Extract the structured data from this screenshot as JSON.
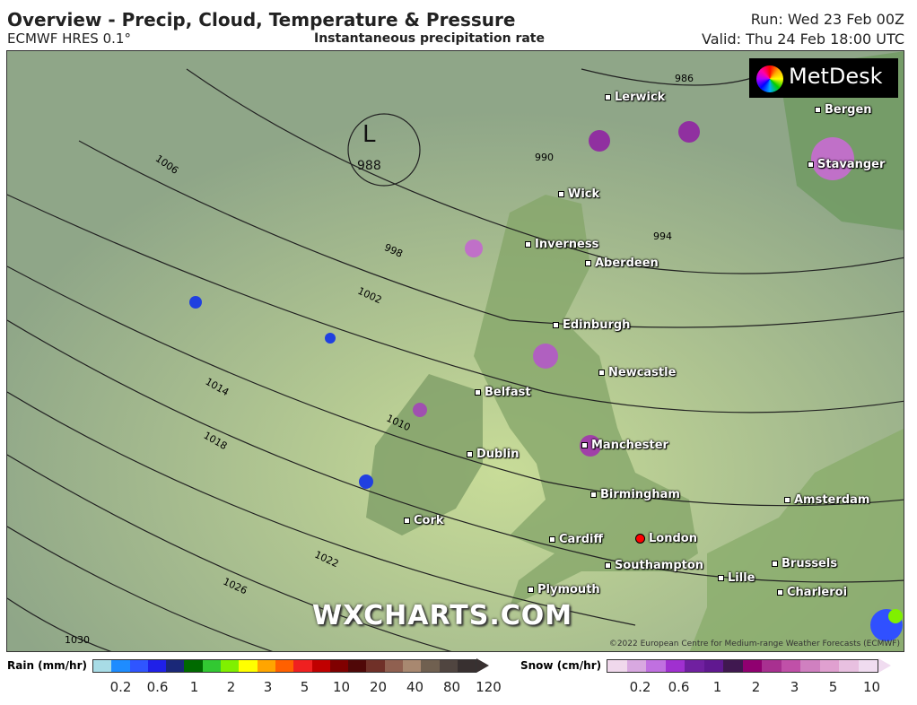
{
  "header": {
    "title": "Overview - Precip, Cloud, Temperature & Pressure",
    "model": "ECMWF HRES 0.1°",
    "subtitle": "Instantaneous precipitation rate",
    "run": "Run: Wed 23 Feb 00Z",
    "valid": "Valid: Thu 24 Feb 18:00 UTC"
  },
  "map": {
    "logo": "MetDesk",
    "watermark": "WXCHARTS.COM",
    "copyright": "©2022 European Centre for Medium-range Weather Forecasts (ECMWF)",
    "low": {
      "label": "L",
      "value": "988"
    },
    "isobar_labels": [
      "986",
      "990",
      "994",
      "998",
      "1002",
      "1006",
      "1010",
      "1014",
      "1018",
      "1022",
      "1026",
      "1030"
    ],
    "cities": [
      "Lerwick",
      "Bergen",
      "Stavanger",
      "Wick",
      "Inverness",
      "Aberdeen",
      "Edinburgh",
      "Newcastle",
      "Belfast",
      "Dublin",
      "Manchester",
      "Birmingham",
      "Amsterdam",
      "Cork",
      "Cardiff",
      "London",
      "Southampton",
      "Brussels",
      "Lille",
      "Charleroi",
      "Plymouth"
    ]
  },
  "legend": {
    "rain": {
      "label": "Rain (mm/hr)",
      "ticks": [
        "0.2",
        "0.6",
        "1",
        "2",
        "3",
        "5",
        "10",
        "20",
        "40",
        "80",
        "120"
      ],
      "colors": [
        "#a8dce6",
        "#1e8cff",
        "#2f55ff",
        "#1f20e8",
        "#1a2878",
        "#006a00",
        "#32c832",
        "#80f000",
        "#ffff00",
        "#ffa500",
        "#ff6000",
        "#f02020",
        "#c00000",
        "#800000",
        "#500808",
        "#703028",
        "#906050",
        "#a88870",
        "#706050",
        "#504540",
        "#383030"
      ]
    },
    "snow": {
      "label": "Snow (cm/hr)",
      "ticks": [
        "0.2",
        "0.6",
        "1",
        "2",
        "3",
        "5",
        "10"
      ],
      "colors": [
        "#f0d8ec",
        "#d8a8e0",
        "#c070e0",
        "#a030d0",
        "#7020a0",
        "#601890",
        "#401850",
        "#900070",
        "#a83090",
        "#c050a8",
        "#d080c0",
        "#e0a0d0",
        "#e8c0e0",
        "#f0dcf0"
      ]
    }
  }
}
